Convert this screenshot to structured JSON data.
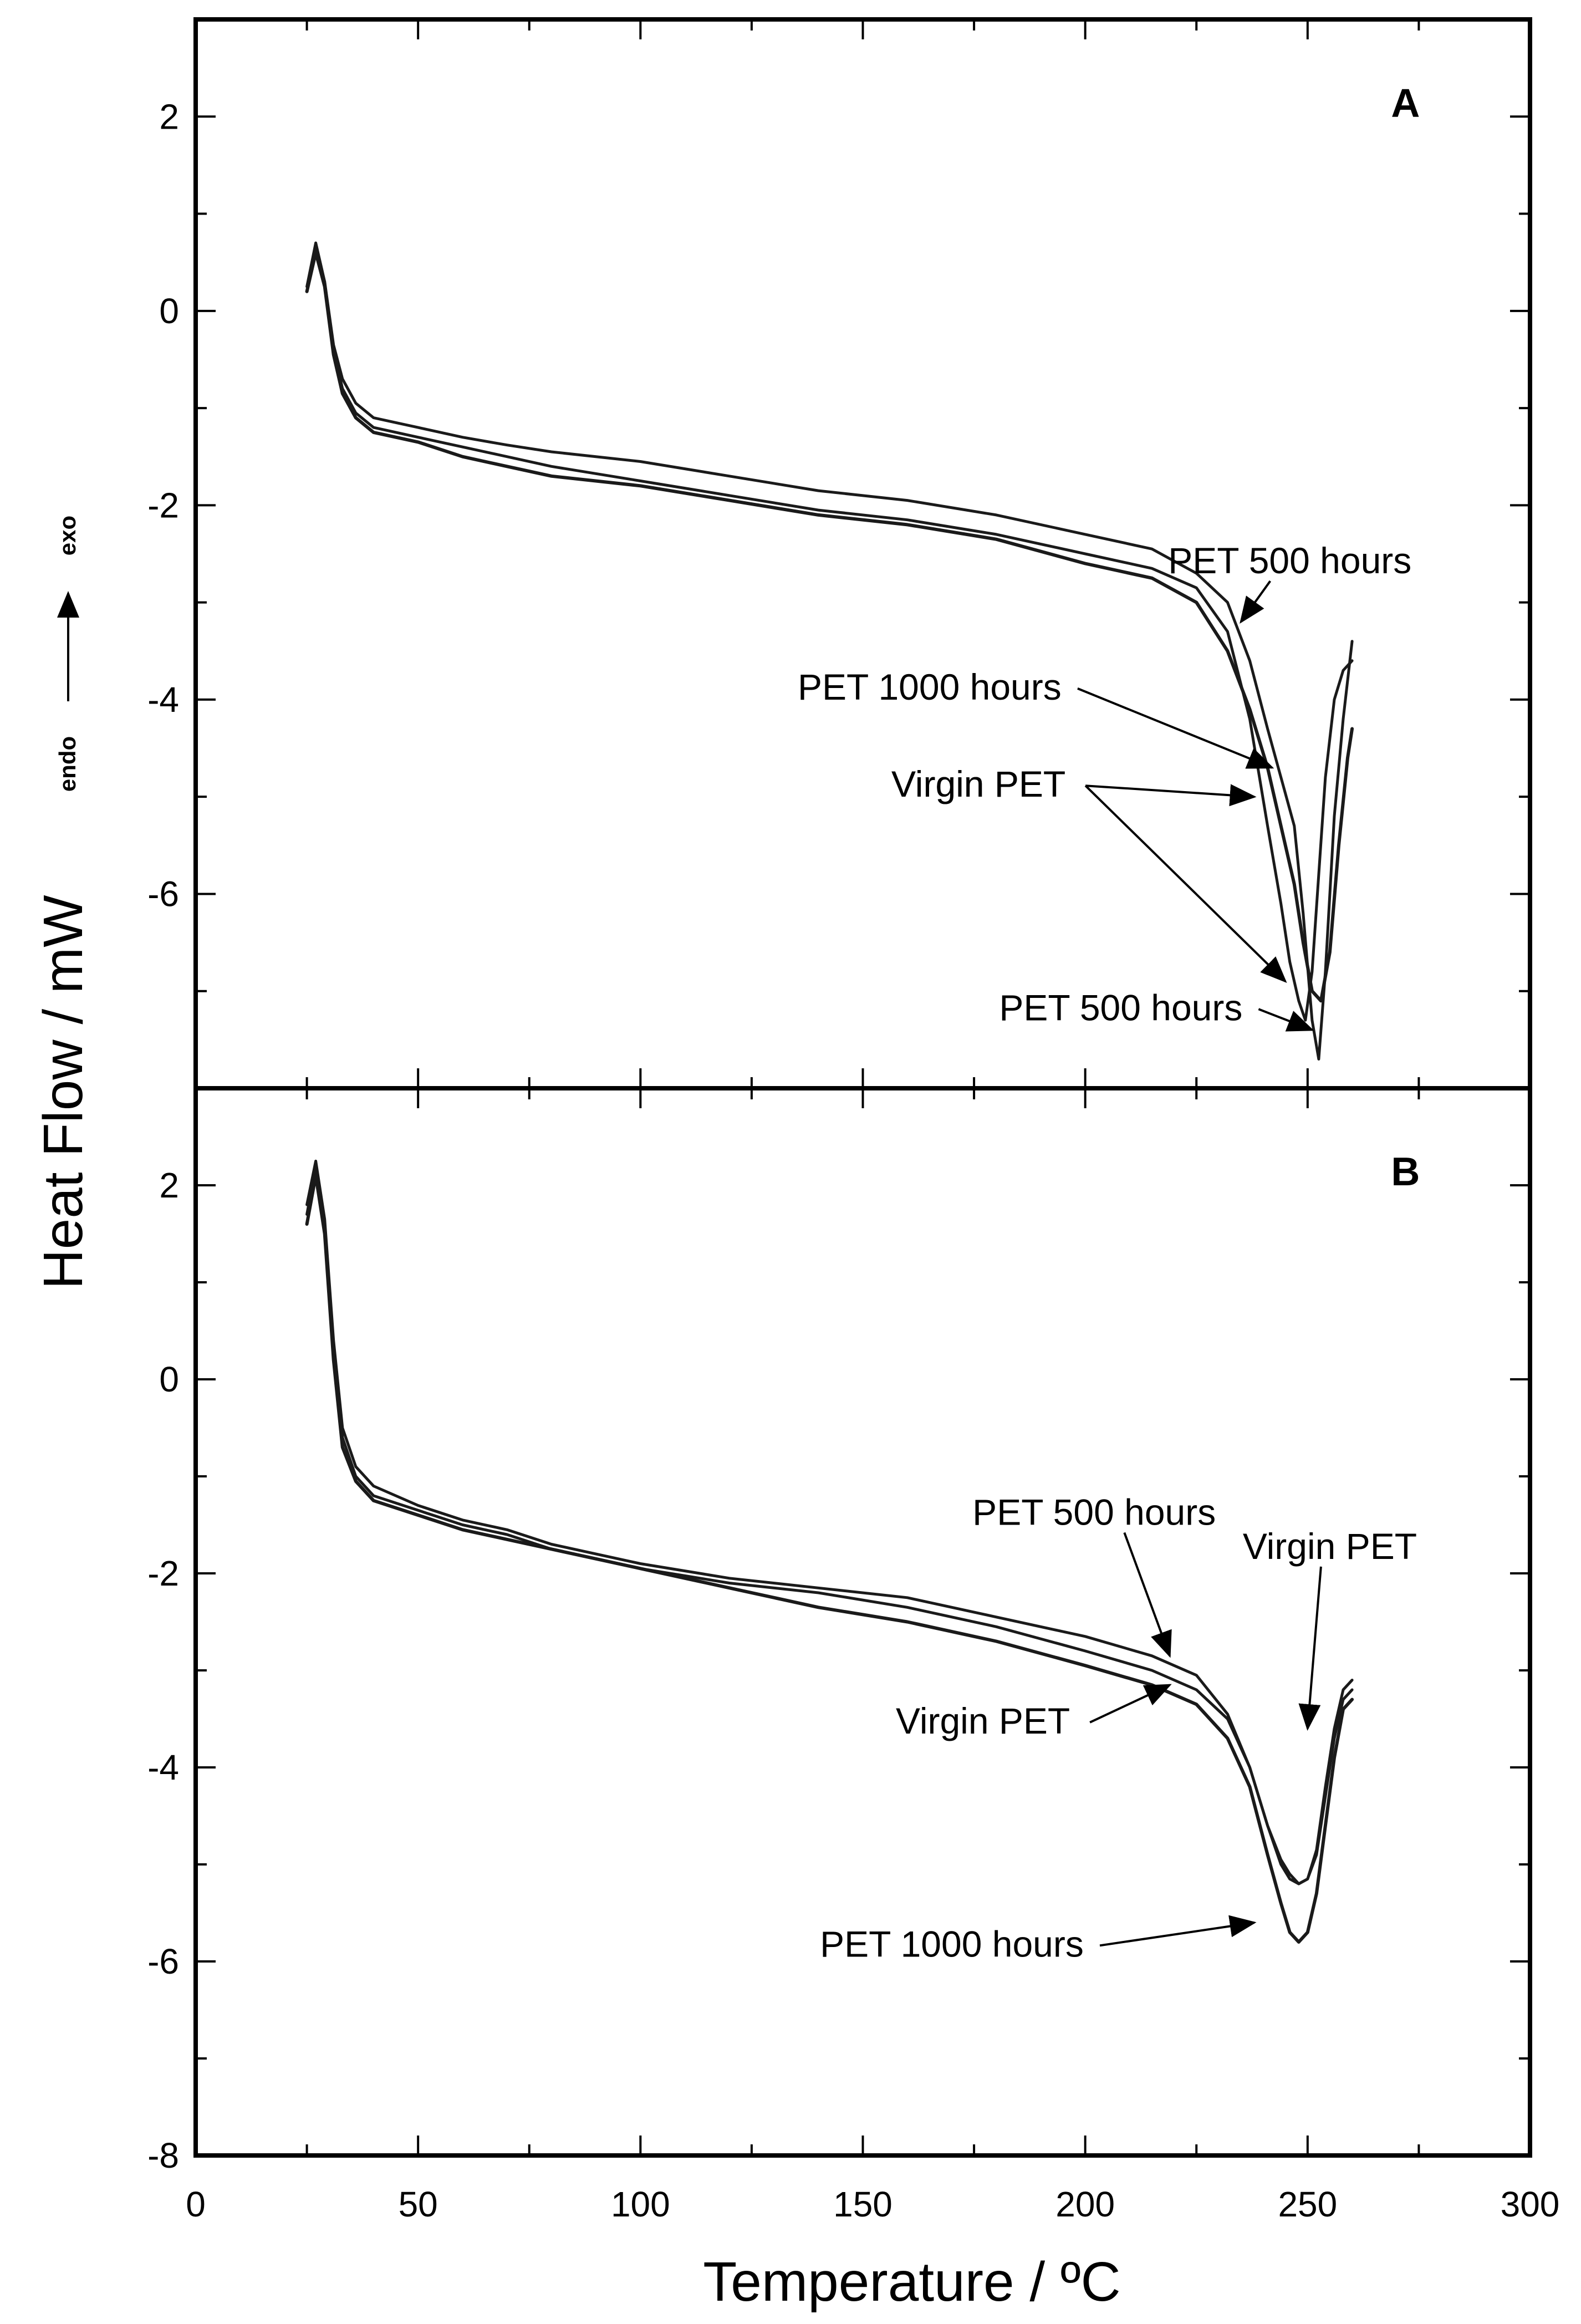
{
  "chart_data": {
    "type": "line",
    "figure_ylabel": "Heat Flow / mW",
    "direction_labels": {
      "endo": "endo",
      "exo": "exo"
    },
    "xlabel": "Temperature / ºC",
    "xlim": [
      0,
      300
    ],
    "xticks": [
      0,
      50,
      100,
      150,
      200,
      250,
      300
    ],
    "panels": [
      {
        "id": "A",
        "label": "A",
        "ylim": [
          -8,
          3
        ],
        "yticks": [
          -6,
          -4,
          -2,
          0,
          2
        ],
        "series": [
          {
            "name": "Virgin PET",
            "x": [
              25,
              27,
              29,
              31,
              33,
              36,
              40,
              50,
              60,
              70,
              80,
              100,
              120,
              140,
              160,
              180,
              200,
              215,
              225,
              232,
              237,
              241,
              244,
              246,
              248,
              249.5,
              251,
              252.5,
              254,
              256,
              258,
              260
            ],
            "y": [
              0.2,
              0.65,
              0.3,
              -0.4,
              -0.8,
              -1.05,
              -1.2,
              -1.3,
              -1.4,
              -1.5,
              -1.6,
              -1.75,
              -1.9,
              -2.05,
              -2.15,
              -2.3,
              -2.5,
              -2.65,
              -2.85,
              -3.3,
              -4.2,
              -5.3,
              -6.1,
              -6.7,
              -7.1,
              -7.3,
              -6.8,
              -5.8,
              -4.8,
              -4.0,
              -3.7,
              -3.6
            ]
          },
          {
            "name": "PET 500 hours",
            "x": [
              25,
              27,
              29,
              31,
              33,
              36,
              40,
              50,
              60,
              70,
              80,
              100,
              120,
              140,
              160,
              180,
              200,
              215,
              225,
              232,
              237,
              241,
              244,
              247,
              249,
              251,
              252.5,
              254,
              256,
              258,
              260
            ],
            "y": [
              0.25,
              0.7,
              0.3,
              -0.35,
              -0.7,
              -0.95,
              -1.1,
              -1.2,
              -1.3,
              -1.38,
              -1.45,
              -1.55,
              -1.7,
              -1.85,
              -1.95,
              -2.1,
              -2.3,
              -2.45,
              -2.7,
              -3.0,
              -3.6,
              -4.3,
              -4.8,
              -5.3,
              -6.2,
              -7.3,
              -7.7,
              -6.8,
              -5.2,
              -4.2,
              -3.4
            ]
          },
          {
            "name": "PET 1000 hours",
            "x": [
              25,
              27,
              29,
              31,
              33,
              36,
              40,
              50,
              60,
              70,
              80,
              100,
              120,
              140,
              160,
              180,
              200,
              215,
              225,
              232,
              237,
              241,
              244,
              247,
              249,
              251,
              253,
              255,
              257,
              259,
              260
            ],
            "y": [
              0.2,
              0.6,
              0.25,
              -0.45,
              -0.85,
              -1.1,
              -1.25,
              -1.35,
              -1.5,
              -1.6,
              -1.7,
              -1.8,
              -1.95,
              -2.1,
              -2.2,
              -2.35,
              -2.6,
              -2.75,
              -3.0,
              -3.5,
              -4.1,
              -4.7,
              -5.3,
              -5.9,
              -6.5,
              -7.0,
              -7.1,
              -6.6,
              -5.5,
              -4.6,
              -4.3
            ]
          }
        ],
        "annotations": [
          {
            "text": "PET 500 hours",
            "at": [
              246,
              -2.7
            ],
            "target": [
              235,
              -3.2
            ]
          },
          {
            "text": "PET 1000 hours",
            "at": [
              165,
              -4.0
            ],
            "target": [
              242,
              -4.7
            ]
          },
          {
            "text": "Virgin PET",
            "at": [
              176,
              -5.0
            ],
            "target": [
              238,
              -5.0
            ]
          },
          {
            "text": "Virgin PET",
            "at": [
              176,
              -5.0
            ],
            "target": [
              245,
              -6.9
            ]
          },
          {
            "text": "PET 500 hours",
            "at": [
              208,
              -7.3
            ],
            "target": [
              251,
              -7.4
            ]
          }
        ]
      },
      {
        "id": "B",
        "label": "B",
        "ylim": [
          -8,
          3
        ],
        "yticks": [
          -8,
          -6,
          -4,
          -2,
          0,
          2
        ],
        "series": [
          {
            "name": "Virgin PET",
            "x": [
              25,
              27,
              29,
              31,
              33,
              36,
              40,
              50,
              60,
              70,
              80,
              100,
              120,
              140,
              160,
              180,
              200,
              215,
              225,
              232,
              237,
              241,
              244,
              246,
              248,
              250,
              252,
              254,
              256,
              258,
              260
            ],
            "y": [
              1.7,
              2.2,
              1.6,
              0.3,
              -0.6,
              -1.0,
              -1.2,
              -1.35,
              -1.5,
              -1.6,
              -1.75,
              -1.95,
              -2.1,
              -2.2,
              -2.35,
              -2.55,
              -2.8,
              -3.0,
              -3.2,
              -3.5,
              -4.0,
              -4.6,
              -5.0,
              -5.15,
              -5.2,
              -5.15,
              -4.9,
              -4.3,
              -3.7,
              -3.3,
              -3.2
            ]
          },
          {
            "name": "PET 500 hours",
            "x": [
              25,
              27,
              29,
              31,
              33,
              36,
              40,
              50,
              60,
              70,
              80,
              100,
              120,
              140,
              160,
              180,
              200,
              215,
              225,
              232,
              237,
              241,
              244,
              246,
              248,
              250,
              252,
              254,
              256,
              258,
              260
            ],
            "y": [
              1.8,
              2.25,
              1.65,
              0.4,
              -0.5,
              -0.9,
              -1.1,
              -1.3,
              -1.45,
              -1.55,
              -1.7,
              -1.9,
              -2.05,
              -2.15,
              -2.25,
              -2.45,
              -2.65,
              -2.85,
              -3.05,
              -3.45,
              -4.0,
              -4.6,
              -4.95,
              -5.1,
              -5.2,
              -5.15,
              -4.85,
              -4.2,
              -3.6,
              -3.2,
              -3.1
            ]
          },
          {
            "name": "PET 1000 hours",
            "x": [
              25,
              27,
              29,
              31,
              33,
              36,
              40,
              50,
              60,
              70,
              80,
              100,
              120,
              140,
              160,
              180,
              200,
              215,
              225,
              232,
              237,
              241,
              244,
              246,
              248,
              250,
              252,
              254,
              256,
              258,
              260
            ],
            "y": [
              1.6,
              2.1,
              1.5,
              0.2,
              -0.7,
              -1.05,
              -1.25,
              -1.4,
              -1.55,
              -1.65,
              -1.75,
              -1.95,
              -2.15,
              -2.35,
              -2.5,
              -2.7,
              -2.95,
              -3.15,
              -3.35,
              -3.7,
              -4.2,
              -4.9,
              -5.4,
              -5.7,
              -5.8,
              -5.7,
              -5.3,
              -4.6,
              -3.9,
              -3.4,
              -3.3
            ]
          }
        ],
        "annotations": [
          {
            "text": "PET 500 hours",
            "at": [
              202,
              -1.5
            ],
            "target": [
              219,
              -2.85
            ]
          },
          {
            "text": "Virgin PET",
            "at": [
              255,
              -1.85
            ],
            "target": [
              250,
              -3.6
            ]
          },
          {
            "text": "Virgin PET",
            "at": [
              177,
              -3.65
            ],
            "target": [
              219,
              -3.15
            ]
          },
          {
            "text": "PET 1000 hours",
            "at": [
              170,
              -5.95
            ],
            "target": [
              238,
              -5.6
            ]
          }
        ]
      }
    ]
  }
}
